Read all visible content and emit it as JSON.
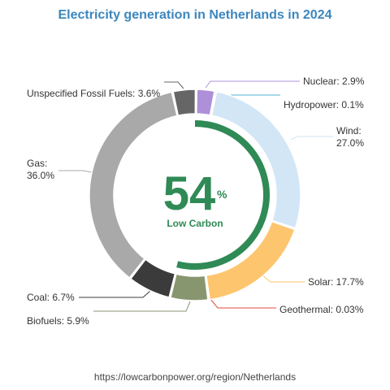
{
  "chart_data": {
    "type": "donut",
    "title": "Electricity generation in Netherlands in 2024",
    "center_value": "54",
    "center_unit": "%",
    "center_label": "Low Carbon",
    "low_carbon_share": 0.54,
    "series": [
      {
        "name": "Nuclear",
        "value": 2.9,
        "label": "Nuclear: 2.9%",
        "color": "#ad90d8"
      },
      {
        "name": "Hydropower",
        "value": 0.1,
        "label": "Hydropower: 0.1%",
        "color": "#4fb3d2"
      },
      {
        "name": "Wind",
        "value": 27.0,
        "label": "Wind:",
        "label2": "27.0%",
        "color": "#d2e6f6"
      },
      {
        "name": "Solar",
        "value": 17.7,
        "label": "Solar: 17.7%",
        "color": "#fec56f"
      },
      {
        "name": "Geothermal",
        "value": 0.03,
        "label": "Geothermal: 0.03%",
        "color": "#e24b3a"
      },
      {
        "name": "Biofuels",
        "value": 5.9,
        "label": "Biofuels: 5.9%",
        "color": "#889670"
      },
      {
        "name": "Coal",
        "value": 6.7,
        "label": "Coal: 6.7%",
        "color": "#3b3b3b"
      },
      {
        "name": "Gas",
        "value": 36.0,
        "label": "Gas:",
        "label2": "36.0%",
        "color": "#a9a9a9"
      },
      {
        "name": "Unspecified Fossil Fuels",
        "value": 3.6,
        "label": "Unspecified Fossil Fuels: 3.6%",
        "color": "#666666"
      }
    ]
  },
  "colors": {
    "title": "#3b87be",
    "low_carbon": "#2f8a56",
    "footer": "#444444"
  },
  "footer": {
    "url": "https://lowcarbonpower.org/region/Netherlands"
  }
}
